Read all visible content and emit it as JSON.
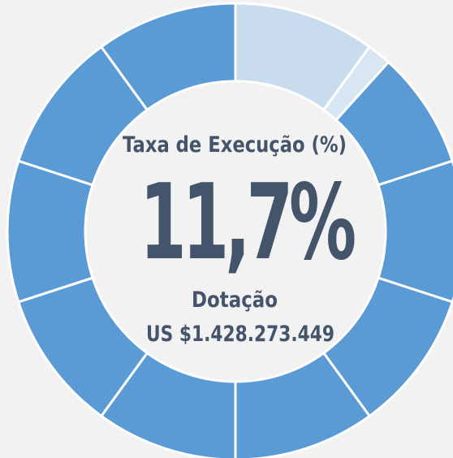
{
  "chart_data": {
    "type": "gauge",
    "title": "Taxa de Execução (%)",
    "value": 11.7,
    "value_label": "11,7%",
    "subtitle": "Dotação",
    "subtitle_value": "US $1.428.273.449",
    "ylim": [
      0,
      100
    ],
    "color": "#5b9bd5",
    "fill_color": "#c9dcee",
    "partial_color": "#d8e5f2"
  }
}
